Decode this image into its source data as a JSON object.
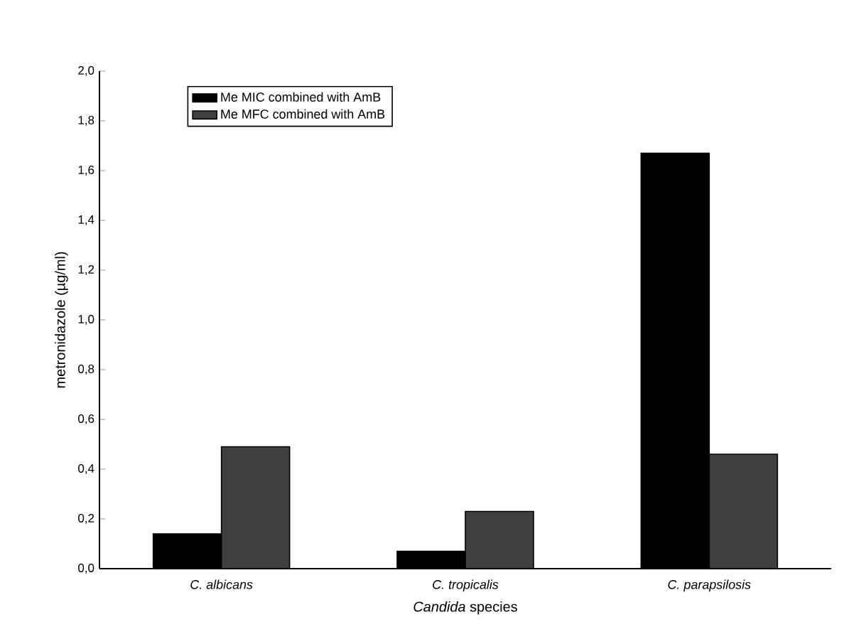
{
  "chart_data": {
    "type": "bar",
    "xlabel": "*Candida* species",
    "ylabel": "metronidazole (µg/ml)",
    "categories": [
      "C. albicans",
      "C. tropicalis",
      "C. parapsilosis"
    ],
    "series": [
      {
        "name": "Me MIC combined with AmB",
        "color": "#000000",
        "values": [
          0.14,
          0.07,
          1.67
        ]
      },
      {
        "name": "Me MFC combined with AmB",
        "color": "#404040",
        "values": [
          0.49,
          0.23,
          0.46
        ]
      }
    ],
    "ylim": [
      0,
      2
    ],
    "yticks": [
      {
        "value": 0,
        "label": "0,0"
      },
      {
        "value": 0.2,
        "label": "0,2"
      },
      {
        "value": 0.4,
        "label": "0,4"
      },
      {
        "value": 0.6,
        "label": "0,6"
      },
      {
        "value": 0.8,
        "label": "0,8"
      },
      {
        "value": 1.0,
        "label": "1,0"
      },
      {
        "value": 1.2,
        "label": "1,2"
      },
      {
        "value": 1.4,
        "label": "1,4"
      },
      {
        "value": 1.6,
        "label": "1,6"
      },
      {
        "value": 1.8,
        "label": "1,8"
      },
      {
        "value": 2.0,
        "label": "2,0"
      }
    ],
    "legend": "top left",
    "grid": false
  }
}
